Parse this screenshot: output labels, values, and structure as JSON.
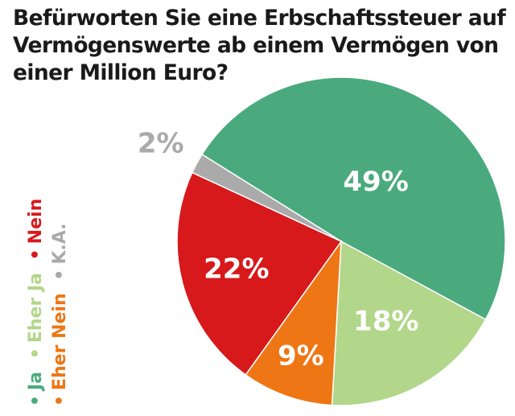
{
  "title": {
    "line1": "Befürworten Sie eine Erbschaftssteuer auf",
    "line2": "Vermögenswerte ab einem Vermögen von",
    "line3": "einer Million Euro?"
  },
  "chart_data": {
    "type": "pie",
    "title": "Befürworten Sie eine Erbschaftssteuer auf Vermögenswerte ab einem Vermögen von einer Million Euro?",
    "categories": [
      "Ja",
      "Eher Ja",
      "Eher Nein",
      "Nein",
      "K.A."
    ],
    "values": [
      49,
      18,
      9,
      22,
      2
    ],
    "labels": [
      "49%",
      "18%",
      "9%",
      "22%",
      "2%"
    ],
    "colors": [
      "#4aaa7e",
      "#b2d68a",
      "#ee7614",
      "#d7191c",
      "#aaaaaa"
    ],
    "label_colors": [
      "#ffffff",
      "#ffffff",
      "#ffffff",
      "#ffffff",
      "#aaaaaa"
    ],
    "legend_position": "left, rotated vertical"
  },
  "legend": {
    "bullet": "•",
    "rows": [
      [
        {
          "label": "Ja",
          "color": "#4aaa7e"
        },
        {
          "label": "Eher Ja",
          "color": "#b2d68a"
        },
        {
          "label": "Nein",
          "color": "#d7191c"
        }
      ],
      [
        {
          "label": "Eher Nein",
          "color": "#ee7614"
        },
        {
          "label": "K.A.",
          "color": "#aaaaaa"
        }
      ]
    ]
  }
}
